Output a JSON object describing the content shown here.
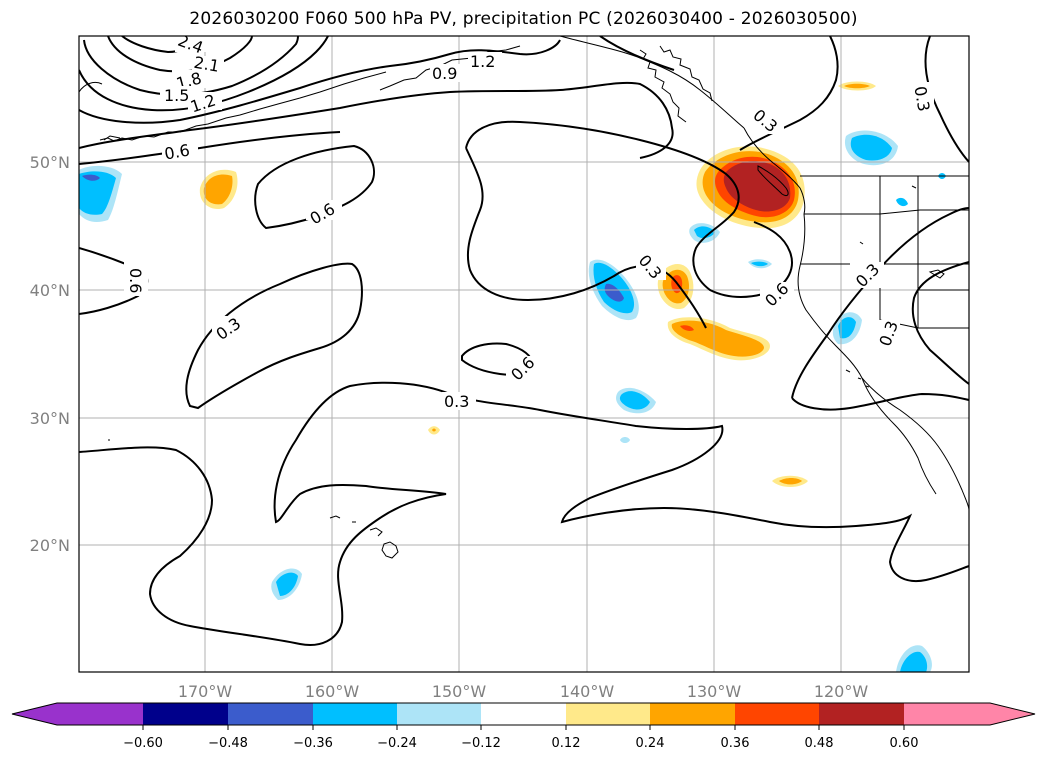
{
  "title": "2026030200 F060 500 hPa PV, precipitation PC (2026030400 - 2026030500)",
  "colors": {
    "grid": "#b0b0b0",
    "contour": "#000000",
    "coast": "#000000",
    "axis_label": "#808080"
  },
  "axes": {
    "lat_labels": [
      "50°N",
      "40°N",
      "30°N",
      "20°N"
    ],
    "lon_labels": [
      "170°W",
      "160°W",
      "150°W",
      "140°W",
      "130°W",
      "120°W"
    ]
  },
  "contour_labels": [
    "2.4",
    "2.1",
    "1.8",
    "1.5",
    "1.2",
    "1.2",
    "0.9",
    "0.6",
    "0.6",
    "0.6",
    "0.3",
    "0.3",
    "0.3",
    "0.6",
    "0.3",
    "0.6",
    "0.3",
    "0.3",
    "0.3"
  ],
  "colorbar": {
    "ticks": [
      "−0.60",
      "−0.48",
      "−0.36",
      "−0.24",
      "−0.12",
      "0.12",
      "0.24",
      "0.36",
      "0.48",
      "0.60"
    ],
    "colors": [
      "#9932cc",
      "#00008b",
      "#3b5ccc",
      "#00bfff",
      "#ade4f7",
      "#ffffff",
      "#ffe98a",
      "#ffa500",
      "#ff4500",
      "#b22222",
      "#ff85a8",
      "#ff85a8"
    ]
  }
}
